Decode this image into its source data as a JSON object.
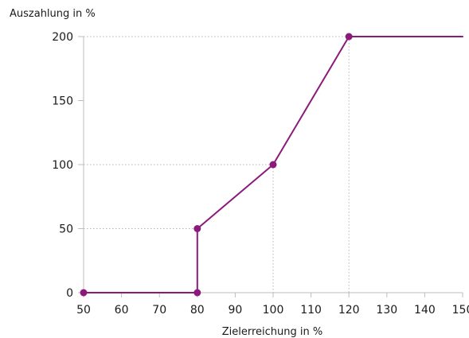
{
  "chart_data": {
    "type": "line",
    "title": "",
    "xlabel": "Zielerreichung in %",
    "ylabel": "Auszahlung in %",
    "xlim": [
      50,
      150
    ],
    "ylim": [
      0,
      200
    ],
    "x_ticks": [
      50,
      60,
      70,
      80,
      90,
      100,
      110,
      120,
      130,
      140,
      150
    ],
    "y_ticks": [
      0,
      50,
      100,
      150,
      200
    ],
    "grid": "dotted guide lines at marked points",
    "series": [
      {
        "points": [
          [
            50,
            0
          ],
          [
            80,
            0
          ],
          [
            80,
            50
          ],
          [
            100,
            100
          ],
          [
            120,
            200
          ],
          [
            150,
            200
          ]
        ],
        "markers": [
          [
            50,
            0
          ],
          [
            80,
            0
          ],
          [
            80,
            50
          ],
          [
            100,
            100
          ],
          [
            120,
            200
          ]
        ]
      }
    ],
    "colors": {
      "line": "#8b1a7a",
      "axis": "#bdbdbd",
      "guide": "#b5b5b5"
    }
  }
}
